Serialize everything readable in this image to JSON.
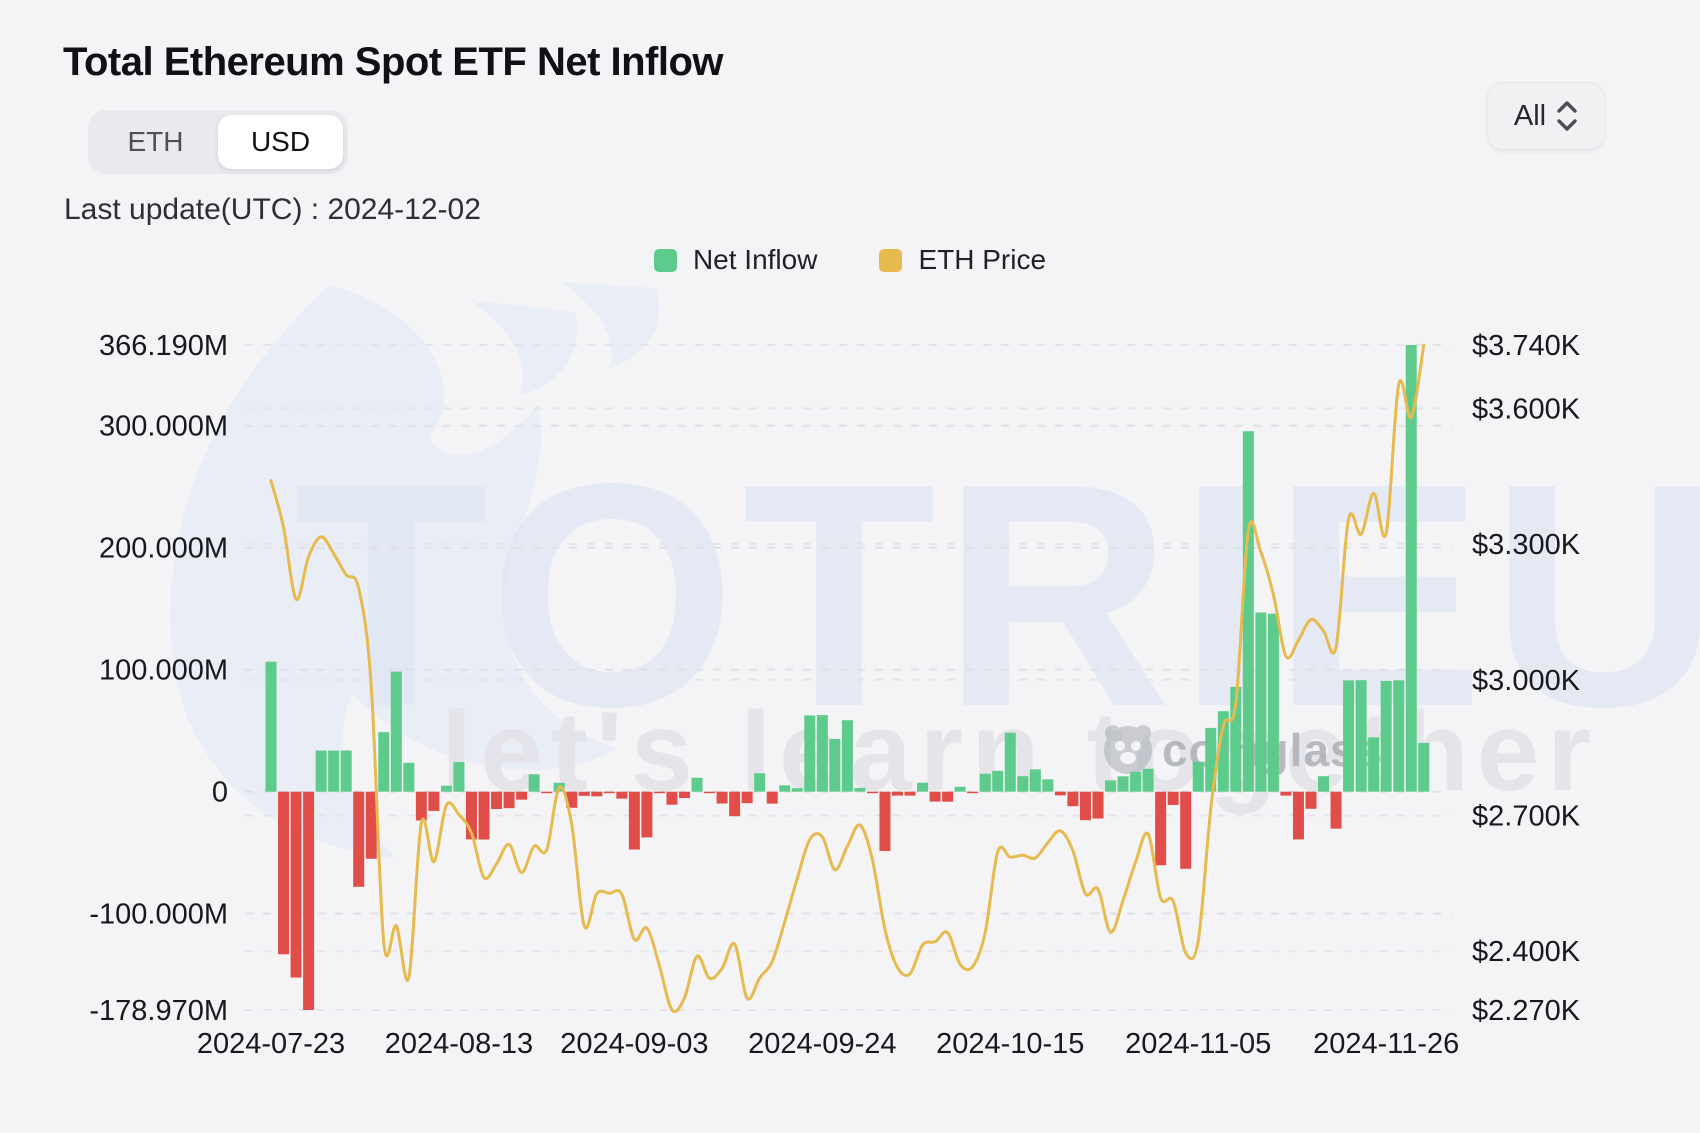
{
  "header": {
    "title": "Total Ethereum Spot ETF Net Inflow",
    "toggle": {
      "eth_label": "ETH",
      "usd_label": "USD",
      "active": "USD"
    },
    "last_update": "Last update(UTC) : 2024-12-02",
    "range_selector": {
      "value": "All"
    }
  },
  "legend": [
    {
      "label": "Net Inflow",
      "color": "#5ccb8c"
    },
    {
      "label": "ETH Price",
      "color": "#e6ba4e"
    }
  ],
  "watermark": {
    "brand": "TOTRIEU",
    "slogan": "let's learn together",
    "attribution": "coinglass"
  },
  "chart_data": {
    "type": "bar",
    "combo": "bar+line",
    "title": "Total Ethereum Spot ETF Net Inflow",
    "x": [
      "2024-07-23",
      "2024-07-24",
      "2024-07-25",
      "2024-07-26",
      "2024-07-29",
      "2024-07-30",
      "2024-07-31",
      "2024-08-01",
      "2024-08-02",
      "2024-08-05",
      "2024-08-06",
      "2024-08-07",
      "2024-08-08",
      "2024-08-09",
      "2024-08-12",
      "2024-08-13",
      "2024-08-14",
      "2024-08-15",
      "2024-08-16",
      "2024-08-19",
      "2024-08-20",
      "2024-08-21",
      "2024-08-22",
      "2024-08-23",
      "2024-08-26",
      "2024-08-27",
      "2024-08-28",
      "2024-08-29",
      "2024-08-30",
      "2024-09-03",
      "2024-09-04",
      "2024-09-05",
      "2024-09-06",
      "2024-09-09",
      "2024-09-10",
      "2024-09-11",
      "2024-09-12",
      "2024-09-13",
      "2024-09-16",
      "2024-09-17",
      "2024-09-18",
      "2024-09-19",
      "2024-09-20",
      "2024-09-23",
      "2024-09-24",
      "2024-09-25",
      "2024-09-26",
      "2024-09-27",
      "2024-09-30",
      "2024-10-01",
      "2024-10-02",
      "2024-10-03",
      "2024-10-04",
      "2024-10-07",
      "2024-10-08",
      "2024-10-09",
      "2024-10-10",
      "2024-10-11",
      "2024-10-14",
      "2024-10-15",
      "2024-10-16",
      "2024-10-17",
      "2024-10-18",
      "2024-10-21",
      "2024-10-22",
      "2024-10-23",
      "2024-10-24",
      "2024-10-25",
      "2024-10-28",
      "2024-10-29",
      "2024-10-30",
      "2024-10-31",
      "2024-11-01",
      "2024-11-04",
      "2024-11-05",
      "2024-11-06",
      "2024-11-07",
      "2024-11-08",
      "2024-11-11",
      "2024-11-12",
      "2024-11-13",
      "2024-11-14",
      "2024-11-15",
      "2024-11-18",
      "2024-11-19",
      "2024-11-20",
      "2024-11-21",
      "2024-11-22",
      "2024-11-25",
      "2024-11-26",
      "2024-11-27",
      "2024-11-29",
      "2024-12-02"
    ],
    "series": [
      {
        "name": "Net Inflow",
        "unit": "M USD",
        "type": "bar",
        "axis": "left",
        "positive_color": "#5ccb8c",
        "negative_color": "#e14e4a",
        "values": [
          106.6,
          -133.3,
          -152.4,
          -178.97,
          33.7,
          33.7,
          33.8,
          -78.0,
          -55.0,
          48.8,
          98.4,
          23.7,
          -23.6,
          -15.8,
          4.9,
          24.3,
          -39.1,
          -39.2,
          -14.2,
          -13.5,
          -6.5,
          14.3,
          -0.9,
          7.3,
          -13.2,
          -3.4,
          -3.8,
          -0.4,
          -5.7,
          -47.4,
          -37.5,
          -0.2,
          -10.7,
          -5.2,
          11.4,
          -0.5,
          -9.7,
          -20.1,
          -9.4,
          15.1,
          -9.8,
          5.2,
          2.9,
          62.5,
          62.8,
          43.2,
          58.6,
          3.1,
          -0.5,
          -48.6,
          -3.2,
          -3.2,
          7.4,
          -8.1,
          -8.2,
          4.0,
          -0.5,
          14.7,
          17.1,
          48.4,
          12.7,
          18.3,
          10.1,
          -3.0,
          -11.9,
          -23.4,
          -22.0,
          9.2,
          12.6,
          16.4,
          18.8,
          -60.3,
          -10.9,
          -63.2,
          24.5,
          52.3,
          66.0,
          85.9,
          295.5,
          146.9,
          145.9,
          -3.2,
          -39.1,
          -14.0,
          12.7,
          -30.3,
          91.2,
          91.4,
          44.6,
          90.8,
          91.3,
          366.19,
          40.0
        ]
      },
      {
        "name": "ETH Price",
        "unit": "USD",
        "type": "line",
        "axis": "right",
        "color": "#e6ba4e",
        "values": [
          3440,
          3337,
          3178,
          3272,
          3316,
          3279,
          3232,
          3202,
          2988,
          2419,
          2456,
          2342,
          2684,
          2598,
          2723,
          2702,
          2661,
          2563,
          2593,
          2636,
          2574,
          2632,
          2624,
          2762,
          2680,
          2456,
          2527,
          2528,
          2526,
          2426,
          2451,
          2368,
          2270,
          2297,
          2389,
          2340,
          2362,
          2416,
          2296,
          2341,
          2377,
          2465,
          2561,
          2647,
          2653,
          2580,
          2632,
          2679,
          2602,
          2448,
          2364,
          2350,
          2414,
          2421,
          2441,
          2371,
          2366,
          2441,
          2620,
          2608,
          2612,
          2606,
          2640,
          2666,
          2622,
          2527,
          2537,
          2442,
          2512,
          2597,
          2659,
          2518,
          2511,
          2396,
          2422,
          2715,
          2897,
          2948,
          3330,
          3282,
          3188,
          3052,
          3088,
          3133,
          3108,
          3072,
          3356,
          3322,
          3412,
          3324,
          3653,
          3580,
          3740
        ]
      }
    ],
    "left_axis": {
      "ticks": [
        366.19,
        300,
        200,
        100,
        0,
        -100,
        -178.97
      ],
      "tick_labels": [
        "366.190M",
        "300.000M",
        "200.000M",
        "100.000M",
        "0",
        "-100.000M",
        "-178.970M"
      ],
      "min": -178.97,
      "max": 366.19
    },
    "right_axis": {
      "ticks": [
        3740,
        3600,
        3300,
        3000,
        2700,
        2400,
        2270
      ],
      "tick_labels": [
        "$3.740K",
        "$3.600K",
        "$3.300K",
        "$3.000K",
        "$2.700K",
        "$2.400K",
        "$2.270K"
      ],
      "min": 2270,
      "max": 3740
    },
    "x_axis": {
      "tick_dates": [
        "2024-07-23",
        "2024-08-13",
        "2024-09-03",
        "2024-09-24",
        "2024-10-15",
        "2024-11-05",
        "2024-11-26"
      ]
    },
    "grid": "dashed horizontal",
    "legend_position": "top-center"
  }
}
